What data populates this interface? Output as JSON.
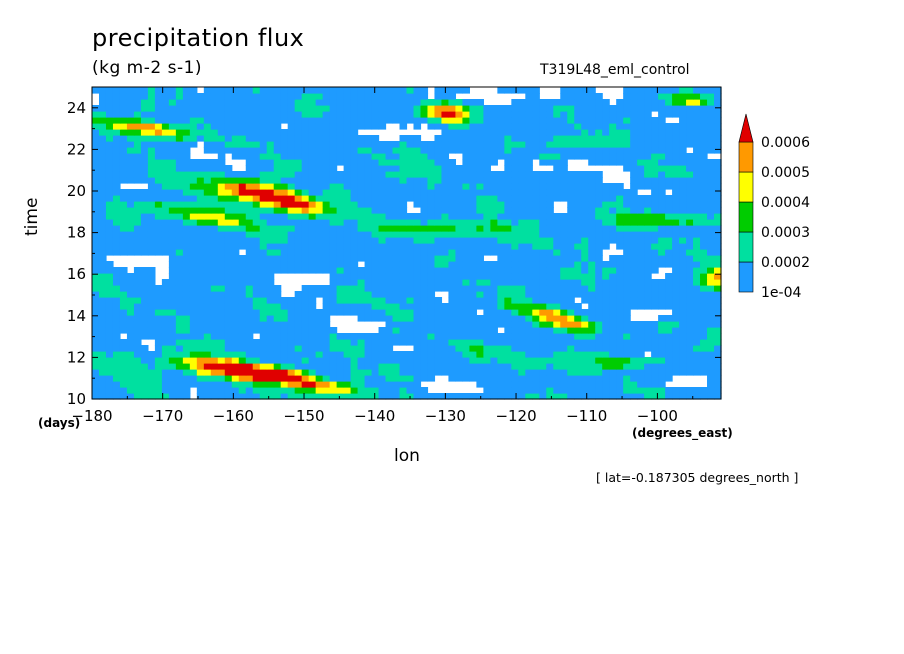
{
  "chart_data": {
    "type": "heatmap",
    "title": "precipitation flux",
    "units": "(kg m-2 s-1)",
    "dataset_label": "T319L48_eml_control",
    "xlabel": "lon",
    "x_unit_label": "(degrees_east)",
    "ylabel": "time",
    "y_unit_label": "(days)",
    "annotation": "[ lat=-0.187305 degrees_north ]",
    "xlim": [
      -180,
      -91
    ],
    "ylim": [
      10,
      25
    ],
    "x_ticks": [
      -180,
      -170,
      -160,
      -150,
      -140,
      -130,
      -120,
      -110,
      -100
    ],
    "x_tick_labels": [
      "-180",
      "-170",
      "-160",
      "-150",
      "-140",
      "-130",
      "-120",
      "-110",
      "-100"
    ],
    "y_ticks": [
      10,
      12,
      14,
      16,
      18,
      20,
      22,
      24
    ],
    "y_tick_labels": [
      "10",
      "12",
      "14",
      "16",
      "18",
      "20",
      "22",
      "24"
    ],
    "colorbar": {
      "levels": [
        0.0001,
        0.0002,
        0.0003,
        0.0004,
        0.0005,
        0.0006
      ],
      "labels": [
        "1e-04",
        "0.0002",
        "0.0003",
        "0.0004",
        "0.0005",
        "0.0006"
      ],
      "colors": [
        "#ffffff",
        "#1e9bff",
        "#00e0a0",
        "#00cc00",
        "#ffff00",
        "#ff9900",
        "#e00000"
      ],
      "extend": "max"
    },
    "features": [
      {
        "lon": -161,
        "day": 11.5,
        "dlon": 7,
        "dday": 0.45,
        "tilt": -2.3,
        "amp": 1.9
      },
      {
        "lon": -154,
        "day": 11.2,
        "dlon": 6,
        "dday": 0.35,
        "tilt": -2.3,
        "amp": 1.6
      },
      {
        "lon": -147,
        "day": 10.6,
        "dlon": 5,
        "dday": 0.35,
        "tilt": -2.3,
        "amp": 1.5
      },
      {
        "lon": -157,
        "day": 20.0,
        "dlon": 7,
        "dday": 0.45,
        "tilt": -2.0,
        "amp": 1.9
      },
      {
        "lon": -151,
        "day": 19.3,
        "dlon": 6,
        "dday": 0.45,
        "tilt": -2.0,
        "amp": 1.3
      },
      {
        "lon": -164,
        "day": 18.8,
        "dlon": 8,
        "dday": 0.45,
        "tilt": -1.5,
        "amp": 1.2
      },
      {
        "lon": -172,
        "day": 23.0,
        "dlon": 6,
        "dday": 0.35,
        "tilt": -2.0,
        "amp": 1.6
      },
      {
        "lon": -130,
        "day": 23.8,
        "dlon": 3,
        "dday": 0.45,
        "tilt": -3.0,
        "amp": 1.7
      },
      {
        "lon": -113,
        "day": 13.7,
        "dlon": 4,
        "dday": 0.35,
        "tilt": -2.0,
        "amp": 1.5
      },
      {
        "lon": -117,
        "day": 14.3,
        "dlon": 4,
        "dday": 0.3,
        "tilt": -2.0,
        "amp": 1.0
      },
      {
        "lon": -91,
        "day": 15.9,
        "dlon": 2.5,
        "dday": 0.55,
        "tilt": 0,
        "amp": 1.5
      },
      {
        "lon": -95,
        "day": 24.4,
        "dlon": 3,
        "dday": 0.25,
        "tilt": 0,
        "amp": 1.0
      },
      {
        "lon": -110,
        "day": 22.4,
        "dlon": 4,
        "dday": 0.25,
        "tilt": 0,
        "amp": 0.8
      },
      {
        "lon": -130,
        "day": 18.2,
        "dlon": 10,
        "dday": 0.35,
        "tilt": 0,
        "amp": 0.7
      },
      {
        "lon": -100,
        "day": 18.6,
        "dlon": 8,
        "dday": 0.3,
        "tilt": 0,
        "amp": 0.8
      },
      {
        "lon": -120,
        "day": 12.0,
        "dlon": 10,
        "dday": 0.4,
        "tilt": -1.5,
        "amp": 0.6
      },
      {
        "lon": -104,
        "day": 11.8,
        "dlon": 6,
        "dday": 0.3,
        "tilt": 0,
        "amp": 0.7
      }
    ],
    "dry_patches": [
      {
        "lon": -125,
        "day": 24.6,
        "dlon": 12,
        "dday": 0.35
      },
      {
        "lon": -115,
        "day": 21.2,
        "dlon": 6,
        "dday": 0.3
      },
      {
        "lon": -138,
        "day": 22.8,
        "dlon": 7,
        "dday": 0.3
      },
      {
        "lon": -150,
        "day": 15.8,
        "dlon": 6,
        "dday": 0.35
      },
      {
        "lon": -172,
        "day": 16.6,
        "dlon": 5,
        "dday": 0.3
      },
      {
        "lon": -142,
        "day": 13.6,
        "dlon": 5,
        "dday": 0.35
      },
      {
        "lon": -128,
        "day": 10.6,
        "dlon": 6,
        "dday": 0.3
      },
      {
        "lon": -97,
        "day": 10.8,
        "dlon": 5,
        "dday": 0.35
      },
      {
        "lon": -100,
        "day": 14.0,
        "dlon": 4,
        "dday": 0.3
      }
    ]
  }
}
